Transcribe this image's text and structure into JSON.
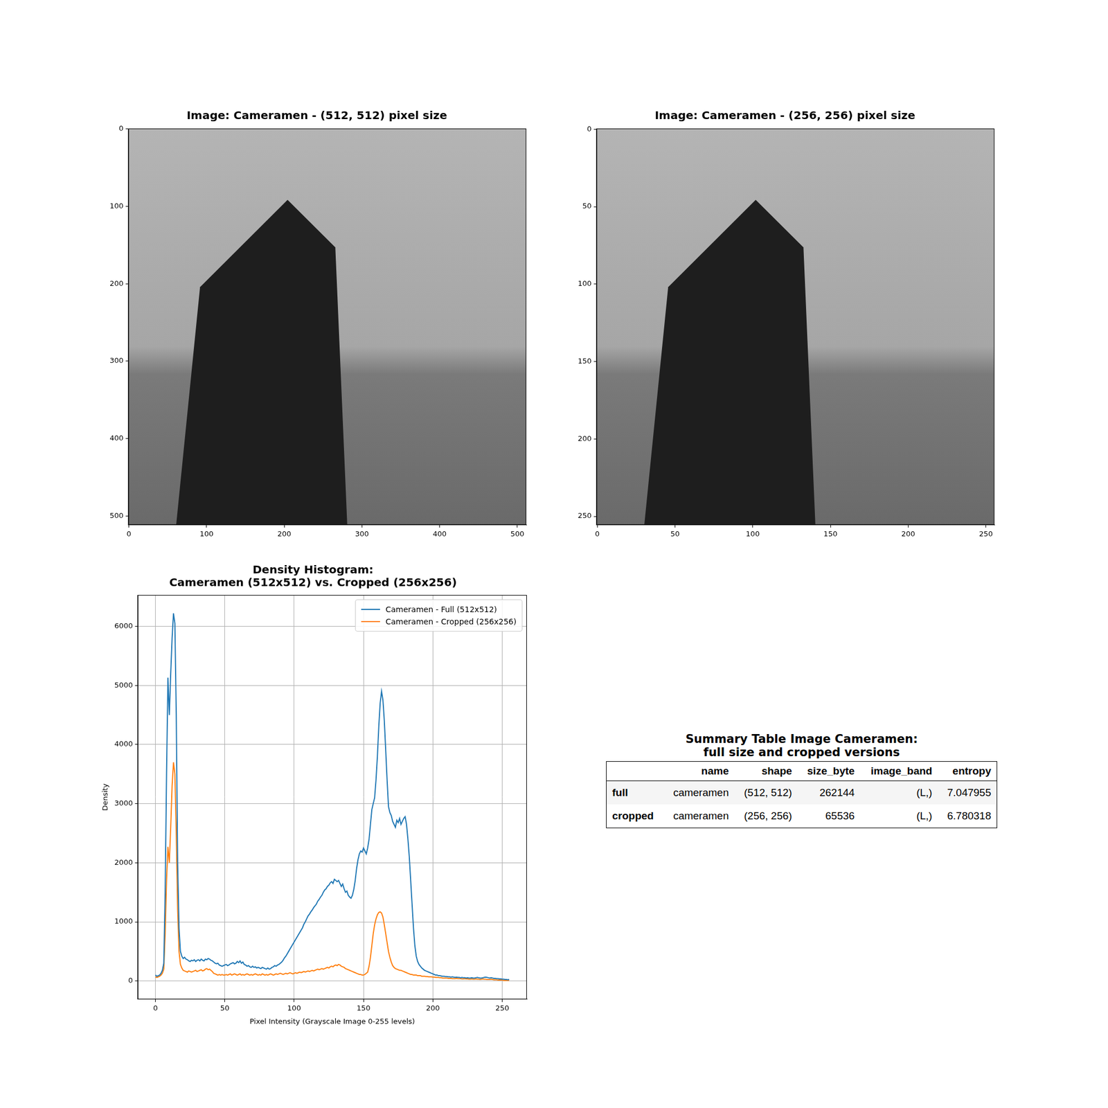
{
  "chart_data": [
    {
      "type": "image",
      "title": "Image: Cameramen - (512, 512) pixel size",
      "xlim": [
        -0.5,
        511.5
      ],
      "ylim": [
        511.5,
        -0.5
      ],
      "xticks": [
        0,
        100,
        200,
        300,
        400,
        500
      ],
      "yticks": [
        0,
        100,
        200,
        300,
        400,
        500
      ],
      "grid": false
    },
    {
      "type": "image",
      "title": "Image: Cameramen - (256, 256) pixel size",
      "xlim": [
        -0.5,
        255.5
      ],
      "ylim": [
        255.5,
        -0.5
      ],
      "xticks": [
        0,
        50,
        100,
        150,
        200,
        250
      ],
      "yticks": [
        0,
        50,
        100,
        150,
        200,
        250
      ],
      "grid": false
    },
    {
      "type": "line",
      "title": "Density Histogram:\nCameramen (512x512) vs. Cropped (256x256)",
      "x_label": "Pixel Intensity (Grayscale Image 0-255 levels)",
      "y_label": "Density",
      "xlim": [
        -12.75,
        267.75
      ],
      "ylim": [
        -310,
        6530
      ],
      "xticks": [
        0,
        50,
        100,
        150,
        200,
        250
      ],
      "yticks": [
        0,
        1000,
        2000,
        3000,
        4000,
        5000,
        6000
      ],
      "grid": true,
      "legend": "upper right",
      "x": [
        0,
        1,
        2,
        3,
        4,
        5,
        6,
        7,
        8,
        9,
        10,
        11,
        12,
        13,
        14,
        15,
        16,
        17,
        18,
        19,
        20,
        21,
        22,
        23,
        24,
        25,
        26,
        27,
        28,
        29,
        30,
        31,
        32,
        33,
        34,
        35,
        36,
        37,
        38,
        39,
        40,
        41,
        42,
        43,
        44,
        45,
        46,
        47,
        48,
        49,
        50,
        51,
        52,
        53,
        54,
        55,
        56,
        57,
        58,
        59,
        60,
        61,
        62,
        63,
        64,
        65,
        66,
        67,
        68,
        69,
        70,
        71,
        72,
        73,
        74,
        75,
        76,
        77,
        78,
        79,
        80,
        81,
        82,
        83,
        84,
        85,
        86,
        87,
        88,
        89,
        90,
        91,
        92,
        93,
        94,
        95,
        96,
        97,
        98,
        99,
        100,
        101,
        102,
        103,
        104,
        105,
        106,
        107,
        108,
        109,
        110,
        111,
        112,
        113,
        114,
        115,
        116,
        117,
        118,
        119,
        120,
        121,
        122,
        123,
        124,
        125,
        126,
        127,
        128,
        129,
        130,
        131,
        132,
        133,
        134,
        135,
        136,
        137,
        138,
        139,
        140,
        141,
        142,
        143,
        144,
        145,
        146,
        147,
        148,
        149,
        150,
        151,
        152,
        153,
        154,
        155,
        156,
        157,
        158,
        159,
        160,
        161,
        162,
        163,
        164,
        165,
        166,
        167,
        168,
        169,
        170,
        171,
        172,
        173,
        174,
        175,
        176,
        177,
        178,
        179,
        180,
        181,
        182,
        183,
        184,
        185,
        186,
        187,
        188,
        189,
        190,
        191,
        192,
        193,
        194,
        195,
        196,
        197,
        198,
        199,
        200,
        201,
        202,
        203,
        204,
        205,
        206,
        207,
        208,
        209,
        210,
        211,
        212,
        213,
        214,
        215,
        216,
        217,
        218,
        219,
        220,
        221,
        222,
        223,
        224,
        225,
        226,
        227,
        228,
        229,
        230,
        231,
        232,
        233,
        234,
        235,
        236,
        237,
        238,
        239,
        240,
        241,
        242,
        243,
        244,
        245,
        246,
        247,
        248,
        249,
        250,
        251,
        252,
        253,
        254,
        255
      ],
      "series": [
        {
          "name": "Cameramen - Full (512x512)",
          "color": "#1f77b4",
          "values": [
            100,
            80,
            90,
            100,
            130,
            180,
            300,
            1500,
            3500,
            5130,
            4500,
            5200,
            5800,
            6220,
            6050,
            4500,
            2000,
            900,
            500,
            420,
            380,
            400,
            370,
            360,
            340,
            330,
            350,
            340,
            360,
            330,
            350,
            360,
            340,
            370,
            350,
            340,
            370,
            360,
            380,
            370,
            350,
            340,
            320,
            300,
            290,
            300,
            270,
            260,
            250,
            260,
            270,
            280,
            260,
            270,
            290,
            300,
            310,
            290,
            300,
            330,
            310,
            340,
            300,
            320,
            280,
            270,
            250,
            260,
            240,
            230,
            250,
            230,
            240,
            220,
            230,
            220,
            210,
            230,
            220,
            210,
            200,
            220,
            200,
            210,
            230,
            240,
            260,
            250,
            270,
            280,
            300,
            320,
            350,
            390,
            420,
            460,
            500,
            540,
            580,
            620,
            660,
            700,
            740,
            780,
            820,
            860,
            900,
            960,
            1000,
            1050,
            1100,
            1130,
            1170,
            1200,
            1240,
            1270,
            1300,
            1350,
            1380,
            1420,
            1450,
            1500,
            1540,
            1560,
            1600,
            1620,
            1660,
            1680,
            1650,
            1720,
            1700,
            1680,
            1700,
            1650,
            1600,
            1640,
            1560,
            1500,
            1520,
            1450,
            1420,
            1400,
            1450,
            1550,
            1700,
            1900,
            2050,
            2150,
            2200,
            2180,
            2250,
            2200,
            2150,
            2250,
            2400,
            2650,
            2900,
            3000,
            3100,
            3400,
            3800,
            4300,
            4700,
            4900,
            4750,
            4400,
            3900,
            3400,
            2950,
            2850,
            2800,
            2700,
            2650,
            2600,
            2720,
            2680,
            2750,
            2650,
            2700,
            2750,
            2780,
            2650,
            2400,
            2100,
            1700,
            1300,
            900,
            600,
            420,
            330,
            280,
            250,
            220,
            200,
            180,
            170,
            160,
            150,
            140,
            130,
            120,
            110,
            100,
            100,
            90,
            90,
            85,
            80,
            80,
            75,
            75,
            70,
            70,
            65,
            70,
            65,
            60,
            65,
            60,
            60,
            55,
            60,
            55,
            55,
            50,
            55,
            50,
            50,
            55,
            50,
            50,
            55,
            60,
            55,
            50,
            50,
            55,
            60,
            65,
            60,
            55,
            50,
            55,
            50,
            45,
            45,
            40,
            40,
            35,
            35,
            30,
            30,
            25,
            25,
            20,
            25
          ]
        },
        {
          "name": "Cameramen - Cropped (256x256)",
          "color": "#ff7f0e",
          "values": [
            70,
            60,
            70,
            80,
            100,
            130,
            200,
            800,
            1700,
            2270,
            2000,
            2600,
            3300,
            3700,
            3500,
            2500,
            1200,
            500,
            280,
            220,
            180,
            170,
            160,
            150,
            170,
            160,
            150,
            160,
            170,
            180,
            160,
            170,
            180,
            190,
            170,
            180,
            200,
            210,
            190,
            200,
            180,
            160,
            130,
            120,
            110,
            100,
            110,
            100,
            110,
            100,
            100,
            110,
            100,
            110,
            120,
            100,
            110,
            120,
            110,
            100,
            110,
            120,
            100,
            110,
            100,
            110,
            120,
            110,
            100,
            110,
            100,
            110,
            120,
            110,
            100,
            110,
            100,
            120,
            110,
            100,
            110,
            100,
            110,
            120,
            110,
            100,
            110,
            120,
            110,
            120,
            130,
            120,
            110,
            120,
            130,
            120,
            130,
            140,
            130,
            120,
            130,
            140,
            130,
            140,
            150,
            140,
            150,
            160,
            150,
            160,
            170,
            160,
            170,
            180,
            170,
            180,
            190,
            200,
            190,
            200,
            210,
            200,
            210,
            220,
            230,
            220,
            240,
            250,
            240,
            260,
            270,
            260,
            280,
            270,
            250,
            240,
            230,
            210,
            200,
            190,
            180,
            170,
            160,
            150,
            140,
            130,
            120,
            110,
            110,
            100,
            100,
            110,
            130,
            150,
            250,
            400,
            600,
            800,
            950,
            1050,
            1120,
            1160,
            1170,
            1150,
            1080,
            950,
            800,
            650,
            500,
            400,
            320,
            260,
            230,
            210,
            200,
            190,
            180,
            180,
            170,
            160,
            150,
            140,
            130,
            120,
            110,
            110,
            100,
            100,
            100,
            90,
            90,
            90,
            80,
            80,
            80,
            75,
            75,
            70,
            70,
            70,
            65,
            65,
            60,
            60,
            60,
            55,
            55,
            50,
            50,
            50,
            50,
            45,
            45,
            45,
            40,
            40,
            40,
            45,
            40,
            40,
            40,
            35,
            35,
            40,
            35,
            35,
            30,
            30,
            35,
            30,
            30,
            35,
            30,
            30,
            25,
            30,
            35,
            30,
            30,
            25,
            25,
            25,
            30,
            25,
            20,
            20,
            20,
            15,
            15,
            15,
            15,
            10,
            10,
            10,
            10,
            10
          ]
        }
      ]
    }
  ],
  "table": {
    "title": "Summary Table Image Cameramen:\nfull size and cropped versions",
    "columns": [
      "name",
      "shape",
      "size_byte",
      "image_band",
      "entropy"
    ],
    "rows": [
      {
        "label": "full",
        "cells": [
          "cameramen",
          "(512, 512)",
          262144,
          "(L,)",
          7.047955
        ]
      },
      {
        "label": "cropped",
        "cells": [
          "cameramen",
          "(256, 256)",
          65536,
          "(L,)",
          6.780318
        ]
      }
    ]
  }
}
